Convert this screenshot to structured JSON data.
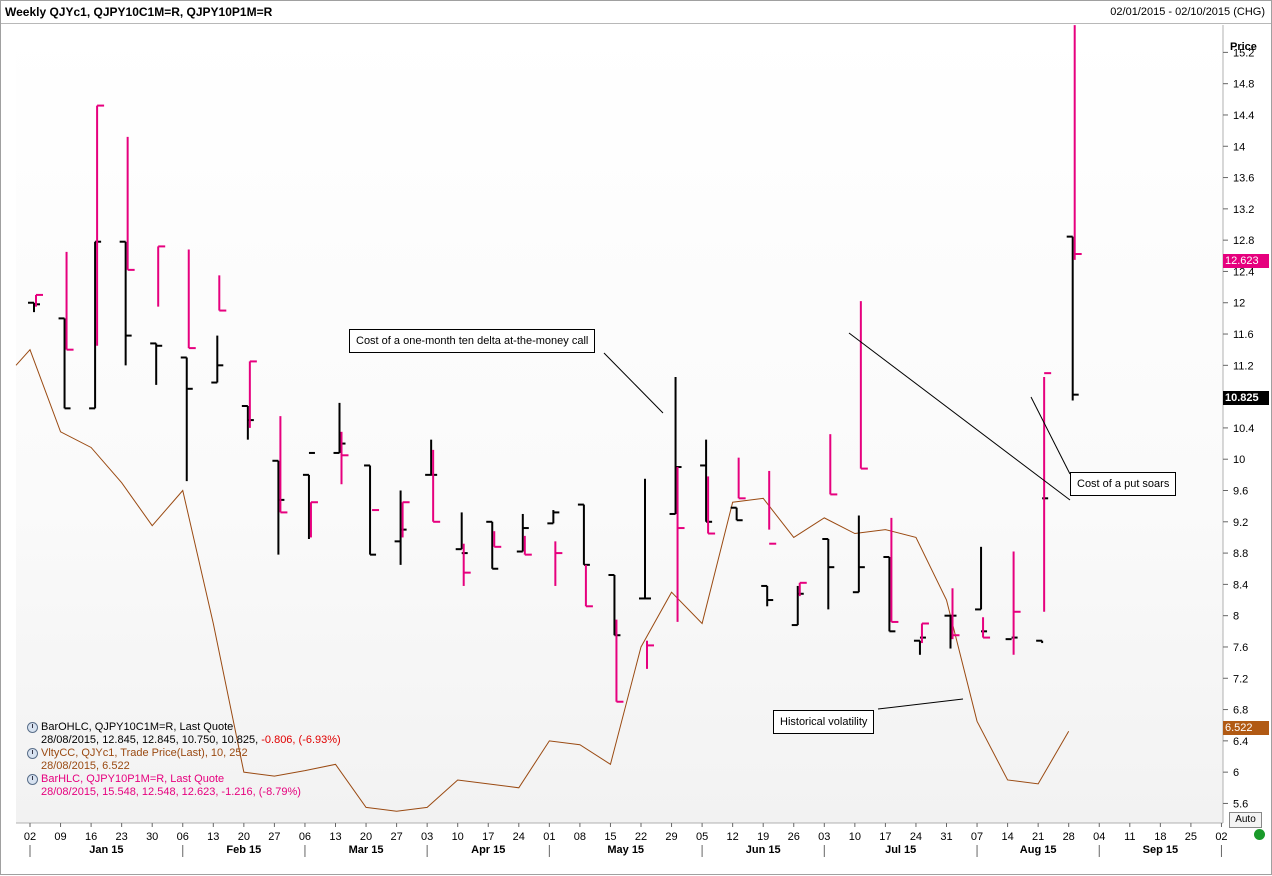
{
  "header": {
    "title": "Weekly QJYc1, QJPY10C1M=R, QJPY10P1M=R",
    "date_range": "02/01/2015 - 02/10/2015 (CHG)"
  },
  "axis": {
    "y_label": "Price",
    "y_ticks": [
      "15.2",
      "14.8",
      "14.4",
      "14",
      "13.6",
      "13.2",
      "12.8",
      "12.4",
      "12",
      "11.6",
      "11.2",
      "10.8",
      "10.4",
      "10",
      "9.6",
      "9.2",
      "8.8",
      "8.4",
      "8",
      "7.6",
      "7.2",
      "6.8",
      "6.4",
      "6",
      "5.6"
    ],
    "x_ticks": [
      "02",
      "09",
      "16",
      "23",
      "30",
      "06",
      "13",
      "20",
      "27",
      "06",
      "13",
      "20",
      "27",
      "03",
      "10",
      "17",
      "24",
      "01",
      "08",
      "15",
      "22",
      "29",
      "05",
      "12",
      "19",
      "26",
      "03",
      "10",
      "17",
      "24",
      "31",
      "07",
      "14",
      "21",
      "28",
      "04",
      "11",
      "18",
      "25",
      "02"
    ],
    "months": [
      "Jan 15",
      "Feb 15",
      "Mar 15",
      "Apr 15",
      "May 15",
      "Jun 15",
      "Jul 15",
      "Aug 15",
      "Sep 15"
    ],
    "auto_label": "Auto"
  },
  "price_tags": {
    "put_last": "12.623",
    "call_last": "10.825",
    "vol_last": "6.522"
  },
  "colors": {
    "call": "#000000",
    "put": "#e6007e",
    "vol": "#9a4a12",
    "status": "#1a9a2a"
  },
  "legend": {
    "call": {
      "title": "BarOHLC, QJPY10C1M=R, Last Quote",
      "date": "28/08/2015,",
      "values": "12.845, 12.845, 10.750, 10.825,",
      "change": "-0.806, (-6.93%)"
    },
    "vol": {
      "title": "VltyCC, QJYc1, Trade Price(Last),  10, 252",
      "values": "28/08/2015, 6.522"
    },
    "put": {
      "title": "BarHLC, QJPY10P1M=R, Last Quote",
      "values": "28/08/2015, 15.548, 12.548, 12.623, -1.216, (-8.79%)"
    }
  },
  "annotations": {
    "call": "Cost of a one-month ten delta at-the-money call",
    "put": "Cost of a put soars",
    "vol": "Historical volatility"
  },
  "chart_data": {
    "type": "bar",
    "x_dates": [
      "02 Jan",
      "09 Jan",
      "16 Jan",
      "23 Jan",
      "30 Jan",
      "06 Feb",
      "13 Feb",
      "20 Feb",
      "27 Feb",
      "06 Mar",
      "13 Mar",
      "20 Mar",
      "27 Mar",
      "03 Apr",
      "10 Apr",
      "17 Apr",
      "24 Apr",
      "01 May",
      "08 May",
      "15 May",
      "22 May",
      "29 May",
      "05 Jun",
      "12 Jun",
      "19 Jun",
      "26 Jun",
      "03 Jul",
      "10 Jul",
      "17 Jul",
      "24 Jul",
      "31 Jul",
      "07 Aug",
      "14 Aug",
      "21 Aug",
      "28 Aug"
    ],
    "ylim": [
      5.35,
      15.55
    ],
    "series": [
      {
        "name": "QJPY10C1M=R",
        "style": "OHLC",
        "bars": [
          [
            12.0,
            12.0,
            11.88,
            11.98
          ],
          [
            11.8,
            11.8,
            10.65,
            10.65
          ],
          [
            10.65,
            12.78,
            10.65,
            12.78
          ],
          [
            12.78,
            12.78,
            11.2,
            11.58
          ],
          [
            11.48,
            11.48,
            10.95,
            11.45
          ],
          [
            11.3,
            11.3,
            9.72,
            10.9
          ],
          [
            10.98,
            11.58,
            10.98,
            11.2
          ],
          [
            10.68,
            10.68,
            10.25,
            10.5
          ],
          [
            9.98,
            9.98,
            8.78,
            9.48
          ],
          [
            9.8,
            9.8,
            8.98,
            10.08
          ],
          [
            10.08,
            10.72,
            10.08,
            10.2
          ],
          [
            9.92,
            9.92,
            8.78,
            8.78
          ],
          [
            8.95,
            9.6,
            8.65,
            9.1
          ],
          [
            9.8,
            10.25,
            9.8,
            9.8
          ],
          [
            8.85,
            9.32,
            8.85,
            8.8
          ],
          [
            9.2,
            9.2,
            8.6,
            8.6
          ],
          [
            8.82,
            9.3,
            8.82,
            9.12
          ],
          [
            9.18,
            9.35,
            9.18,
            9.32
          ],
          [
            9.42,
            9.42,
            8.65,
            8.65
          ],
          [
            8.52,
            8.52,
            7.75,
            7.75
          ],
          [
            8.22,
            9.75,
            8.22,
            8.22
          ],
          [
            9.3,
            11.05,
            9.3,
            9.9
          ],
          [
            9.92,
            10.25,
            9.2,
            9.2
          ],
          [
            9.38,
            9.38,
            9.22,
            9.22
          ],
          [
            8.38,
            8.38,
            8.12,
            8.2
          ],
          [
            7.88,
            8.38,
            7.88,
            8.28
          ],
          [
            8.98,
            8.98,
            8.08,
            8.62
          ],
          [
            8.3,
            9.28,
            8.3,
            8.62
          ],
          [
            8.75,
            8.75,
            7.8,
            7.8
          ],
          [
            7.68,
            7.68,
            7.5,
            7.72
          ],
          [
            8.0,
            8.0,
            7.58,
            8.0
          ],
          [
            8.08,
            8.88,
            8.08,
            7.8
          ],
          [
            7.7,
            7.7,
            7.7,
            7.72
          ],
          [
            7.68,
            7.68,
            7.65,
            9.5
          ],
          [
            12.845,
            12.845,
            10.75,
            10.825
          ]
        ]
      },
      {
        "name": "QJPY10P1M=R",
        "style": "HLC",
        "bars": [
          [
            12.1,
            11.95,
            12.1
          ],
          [
            12.65,
            11.4,
            11.4
          ],
          [
            14.52,
            11.45,
            14.52
          ],
          [
            14.12,
            12.42,
            12.42
          ],
          [
            12.72,
            11.95,
            12.72
          ],
          [
            12.68,
            11.42,
            11.42
          ],
          [
            12.35,
            11.9,
            11.9
          ],
          [
            11.25,
            10.4,
            11.25
          ],
          [
            10.55,
            9.32,
            9.32
          ],
          [
            9.45,
            9.0,
            9.45
          ],
          [
            10.35,
            9.68,
            10.05
          ],
          [
            9.35,
            9.35,
            9.35
          ],
          [
            9.45,
            9.0,
            9.45
          ],
          [
            10.12,
            9.2,
            9.2
          ],
          [
            8.92,
            8.38,
            8.55
          ],
          [
            9.08,
            8.88,
            8.88
          ],
          [
            9.02,
            8.78,
            8.78
          ],
          [
            8.95,
            8.38,
            8.8
          ],
          [
            8.65,
            8.12,
            8.12
          ],
          [
            7.95,
            6.9,
            6.9
          ],
          [
            7.68,
            7.32,
            7.62
          ],
          [
            9.9,
            7.92,
            9.12
          ],
          [
            9.78,
            9.05,
            9.05
          ],
          [
            10.02,
            9.5,
            9.5
          ],
          [
            9.85,
            9.1,
            8.92
          ],
          [
            8.42,
            8.25,
            8.42
          ],
          [
            10.32,
            9.55,
            9.55
          ],
          [
            12.02,
            9.88,
            9.88
          ],
          [
            9.25,
            7.92,
            7.92
          ],
          [
            7.9,
            7.65,
            7.9
          ],
          [
            8.35,
            7.7,
            7.75
          ],
          [
            7.98,
            7.72,
            7.72
          ],
          [
            8.82,
            7.5,
            8.05
          ],
          [
            11.05,
            8.05,
            11.1
          ],
          [
            15.548,
            12.548,
            12.623
          ]
        ]
      },
      {
        "name": "QJYc1",
        "style": "line",
        "values": [
          11.4,
          10.35,
          10.15,
          9.7,
          9.15,
          9.6,
          7.9,
          6.0,
          5.95,
          6.02,
          6.1,
          5.55,
          5.5,
          5.55,
          5.9,
          5.85,
          5.8,
          6.4,
          6.35,
          6.1,
          7.6,
          8.3,
          7.9,
          9.45,
          9.5,
          9.0,
          9.25,
          9.05,
          9.1,
          9.0,
          8.2,
          6.65,
          5.9,
          5.85,
          6.522
        ]
      }
    ]
  }
}
